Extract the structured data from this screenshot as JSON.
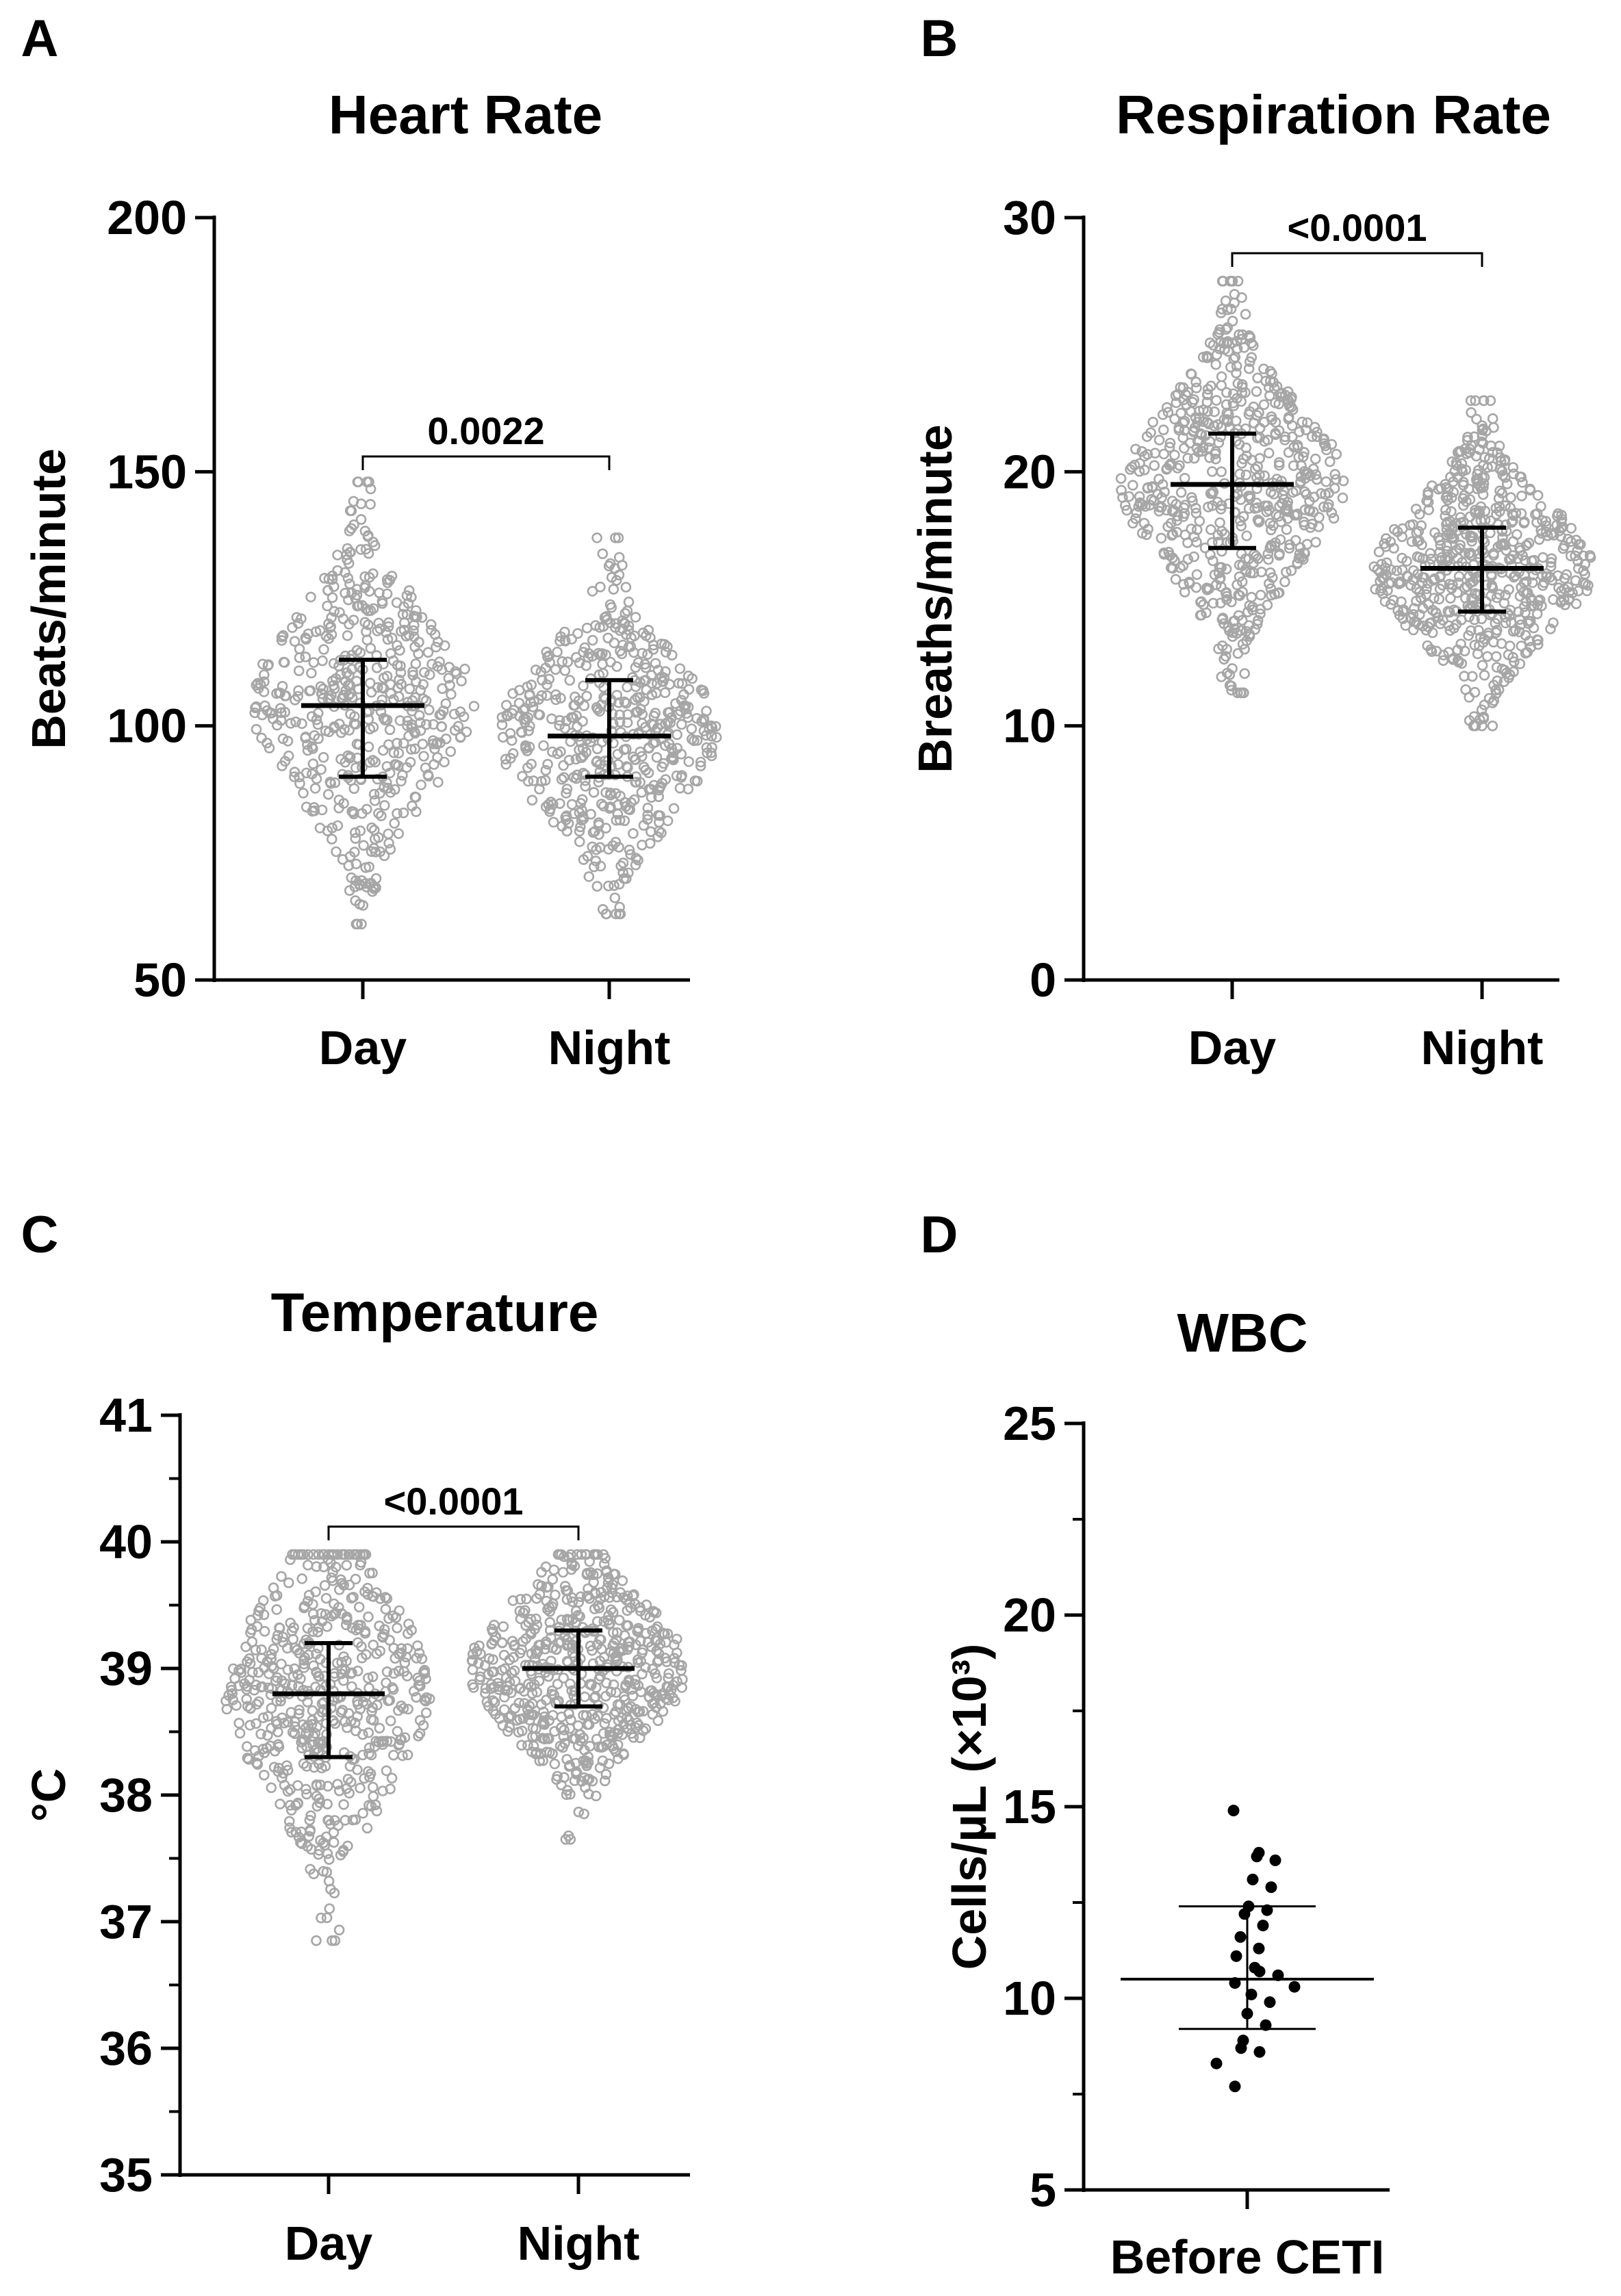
{
  "colors": {
    "points": "#a6a6a6",
    "wbc_points": "#000000",
    "axes": "#000000"
  },
  "chart_data": [
    {
      "type": "scatter",
      "panel": "A",
      "title": "Heart Rate",
      "xlabel": "",
      "ylabel": "Beats/minute",
      "ylim": [
        50,
        200
      ],
      "yticks": [
        "50",
        "100",
        "150",
        "200"
      ],
      "minor_ticks": false,
      "categories": [
        "Day",
        "Night"
      ],
      "series": [
        {
          "name": "Day",
          "median": 104,
          "q1": 90,
          "q3": 113,
          "min": 61,
          "max": 148,
          "spread": 39,
          "n": 520
        },
        {
          "name": "Night",
          "median": 98,
          "q1": 90,
          "q3": 109,
          "min": 63,
          "max": 137,
          "spread": 39,
          "n": 520
        }
      ],
      "comparison": {
        "label": "0.0022",
        "y": 153
      }
    },
    {
      "type": "scatter",
      "panel": "B",
      "title": "Respiration Rate",
      "xlabel": "",
      "ylabel": "Breaths/minute",
      "ylim": [
        0,
        30
      ],
      "yticks": [
        "0",
        "10",
        "20",
        "30"
      ],
      "minor_ticks": false,
      "categories": [
        "Day",
        "Night"
      ],
      "series": [
        {
          "name": "Day",
          "median": 19.5,
          "q1": 17,
          "q3": 21.5,
          "min": 11.3,
          "max": 27.5,
          "spread": 39,
          "n": 620
        },
        {
          "name": "Night",
          "median": 16.2,
          "q1": 14.5,
          "q3": 17.8,
          "min": 10,
          "max": 22.8,
          "spread": 39,
          "n": 620
        }
      ],
      "comparison": {
        "label": "<0.0001",
        "y": 28.6
      }
    },
    {
      "type": "scatter",
      "panel": "C",
      "title": "Temperature",
      "xlabel": "",
      "ylabel": "°C",
      "ylim": [
        35,
        41
      ],
      "yticks": [
        "35",
        "36",
        "37",
        "38",
        "39",
        "40",
        "41"
      ],
      "minor_ticks": true,
      "categories": [
        "Day",
        "Night"
      ],
      "series": [
        {
          "name": "Day",
          "median": 38.8,
          "q1": 38.3,
          "q3": 39.2,
          "min": 36.85,
          "max": 39.9,
          "spread": 36,
          "n": 560
        },
        {
          "name": "Night",
          "median": 39.0,
          "q1": 38.7,
          "q3": 39.3,
          "min": 37.65,
          "max": 39.9,
          "spread": 38,
          "n": 600
        }
      ],
      "comparison": {
        "label": "<0.0001",
        "y": 40.12
      }
    },
    {
      "type": "scatter",
      "panel": "D",
      "title": "WBC",
      "xlabel": "",
      "ylabel": "Cells/µL (×10³)",
      "ylim": [
        5,
        25
      ],
      "yticks": [
        "5",
        "10",
        "15",
        "20",
        "25"
      ],
      "minor_ticks": true,
      "categories": [
        "Before CETI"
      ],
      "series": [
        {
          "name": "Before CETI",
          "mean": 10.5,
          "sd_low": 9.2,
          "sd_high": 12.4,
          "values": [
            14.9,
            13.8,
            13.7,
            13.6,
            13.1,
            12.9,
            12.4,
            12.3,
            12.2,
            11.9,
            11.6,
            11.3,
            11.1,
            10.8,
            10.7,
            10.6,
            10.4,
            10.3,
            10.1,
            9.9,
            9.6,
            9.3,
            8.9,
            8.7,
            8.6,
            8.3,
            7.7
          ]
        }
      ]
    }
  ]
}
